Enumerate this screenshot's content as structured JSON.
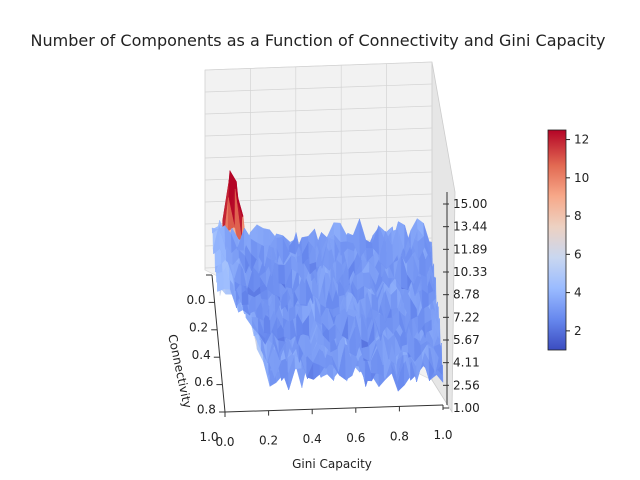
{
  "chart_data": {
    "type": "surface",
    "title": "Number of Components as a Function of Connectivity and Gini Capacity",
    "xlabel": "Gini Capacity",
    "ylabel": "Connectivity",
    "zlabel": "",
    "x_ticks": [
      "0.0",
      "0.2",
      "0.4",
      "0.6",
      "0.8",
      "1.0"
    ],
    "y_ticks": [
      "0.0",
      "0.2",
      "0.4",
      "0.6",
      "0.8",
      "1.0"
    ],
    "z_ticks": [
      "1.00",
      "2.56",
      "4.11",
      "5.67",
      "7.22",
      "8.78",
      "10.33",
      "11.89",
      "13.44",
      "15.00"
    ],
    "xlim": [
      0,
      1
    ],
    "ylim": [
      0,
      1
    ],
    "zlim": [
      1,
      15
    ],
    "colormap": "coolwarm",
    "colorbar": {
      "range": [
        1,
        12.5
      ],
      "ticks": [
        "2",
        "4",
        "6",
        "8",
        "10",
        "12"
      ],
      "colors": [
        "#3b4cc0",
        "#6788ee",
        "#9abbff",
        "#c9d7f0",
        "#edd1c2",
        "#f7a889",
        "#e26952",
        "#b40426"
      ]
    },
    "grid": true,
    "surface_profile": {
      "connectivity": [
        0.0,
        0.1,
        0.2,
        0.3,
        0.4,
        0.5,
        0.6,
        0.7,
        0.8,
        0.9,
        1.0
      ],
      "gini_capacity": [
        0.0,
        0.1,
        0.2,
        0.3,
        0.4,
        0.5,
        0.6,
        0.7,
        0.8,
        0.9,
        1.0
      ],
      "peak_components": 12.5,
      "peak_location": {
        "gini_capacity": 0.05,
        "connectivity": 0.1
      },
      "background_components": 2
    }
  }
}
